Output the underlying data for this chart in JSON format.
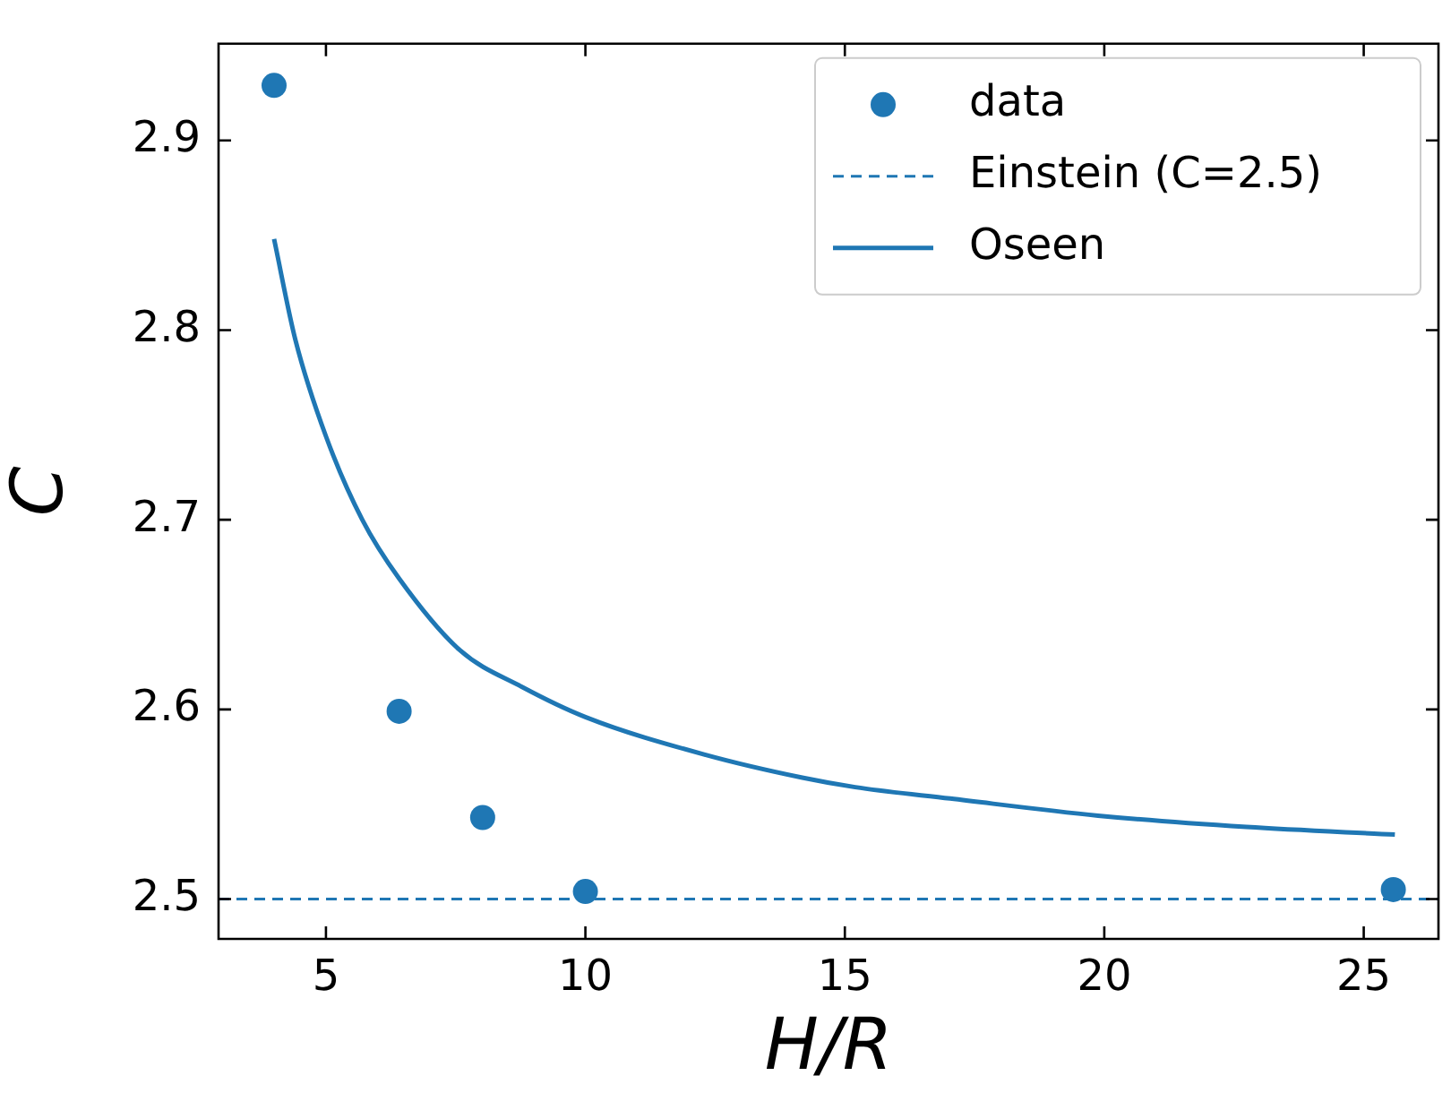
{
  "chart_data": {
    "type": "scatter",
    "xlabel": "H/R",
    "ylabel": "C",
    "xlim": [
      2.93,
      26.44
    ],
    "ylim": [
      2.479,
      2.951
    ],
    "xticks": [
      5,
      10,
      15,
      20,
      25
    ],
    "yticks": [
      2.5,
      2.6,
      2.7,
      2.8,
      2.9
    ],
    "legend": "top right",
    "series": [
      {
        "name": "data",
        "marker": "circle",
        "color": "#1f77b4",
        "x": [
          4,
          6.41,
          8.02,
          10,
          25.57
        ],
        "values": [
          2.929,
          2.599,
          2.543,
          2.504,
          2.505
        ]
      },
      {
        "name": "Oseen",
        "type": "line",
        "marker": "none",
        "line_style": "solid",
        "color": "#1f77b4",
        "x": [
          4.0,
          4.41,
          5.0,
          5.7,
          6.41,
          7.59,
          8.77,
          10.0,
          12.32,
          14.18,
          15.2,
          17.03,
          19.88,
          22.74,
          25.6
        ],
        "values": [
          2.848,
          2.795,
          2.744,
          2.7,
          2.669,
          2.631,
          2.612,
          2.596,
          2.576,
          2.564,
          2.559,
          2.553,
          2.544,
          2.538,
          2.534
        ]
      }
    ],
    "ref_lines": [
      {
        "axis": "y",
        "value": 2.5,
        "label": "Einstein (C=2.5)",
        "color": "#1f77b4",
        "line_style": "dashed"
      }
    ]
  }
}
